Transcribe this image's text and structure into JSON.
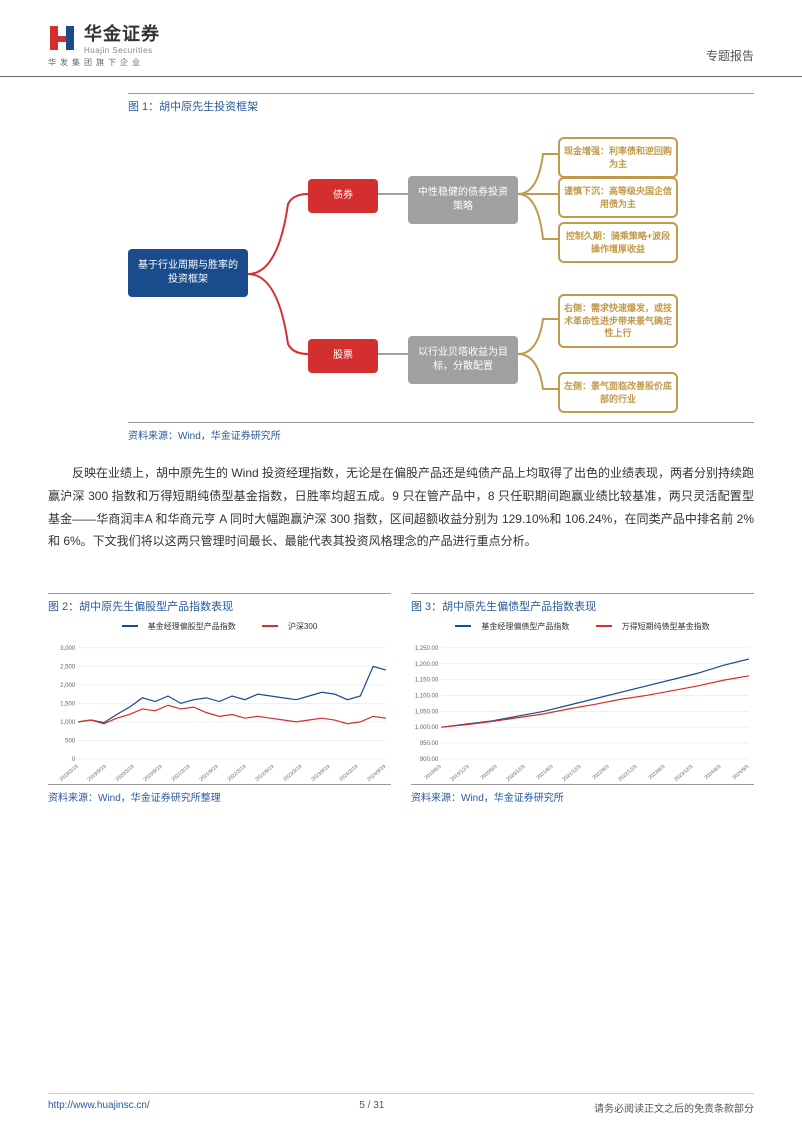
{
  "header": {
    "brand_cn": "华金证券",
    "brand_en": "Huajin Securities",
    "brand_sub": "华发集团旗下企业",
    "report_type": "专题报告"
  },
  "figure1": {
    "title": "图 1：胡中原先生投资框架",
    "root": "基于行业周期与胜率的投资框架",
    "branch_top": "债券",
    "branch_bot": "股票",
    "mid_top": "中性稳健的债券投资策略",
    "mid_bot": "以行业贝塔收益为目标，分散配置",
    "leaf1": "现金增强：利率债和逆回购为主",
    "leaf2": "谨慎下沉：高等级央国企信用债为主",
    "leaf3": "控制久期：骑乘策略+波段操作增厚收益",
    "leaf4": "右侧：需求快速爆发，或技术革命性进步带来景气确定性上行",
    "leaf5": "左侧：景气面临改善股价底部的行业",
    "source": "资料来源：Wind，华金证券研究所",
    "colors": {
      "root": "#1a4b8c",
      "red": "#d32f2f",
      "gray": "#a0a0a0",
      "gold_border": "#c19a4b"
    }
  },
  "body": {
    "para": "反映在业绩上，胡中原先生的 Wind 投资经理指数，无论是在偏股产品还是纯债产品上均取得了出色的业绩表现，两者分别持续跑赢沪深 300 指数和万得短期纯债型基金指数，日胜率均超五成。9 只在管产品中，8 只任职期间跑赢业绩比较基准，两只灵活配置型基金——华商润丰A 和华商元亨 A 同时大幅跑赢沪深 300 指数，区间超额收益分别为 129.10%和 106.24%，在同类产品中排名前 2%和 6%。下文我们将以这两只管理时间最长、最能代表其投资风格理念的产品进行重点分析。"
  },
  "chart2": {
    "title": "图 2：胡中原先生偏股型产品指数表现",
    "legend1": "基金经理偏股型产品指数",
    "legend2": "沪深300",
    "colors": {
      "series1": "#1a4b8c",
      "series2": "#d32f2f",
      "grid": "#e0e0e0"
    },
    "ylim": [
      0,
      3000
    ],
    "ystep": 500,
    "xlabels": [
      "2019/3/19",
      "2019/9/19",
      "2020/3/19",
      "2020/9/19",
      "2021/3/19",
      "2021/9/19",
      "2022/3/19",
      "2022/9/19",
      "2023/3/19",
      "2023/9/19",
      "2024/3/19",
      "2024/9/19"
    ],
    "series1": [
      1000,
      1050,
      980,
      1200,
      1400,
      1650,
      1550,
      1700,
      1500,
      1600,
      1650,
      1550,
      1700,
      1600,
      1750,
      1700,
      1650,
      1600,
      1700,
      1800,
      1750,
      1600,
      1700,
      2500,
      2400
    ],
    "series2": [
      1000,
      1050,
      950,
      1100,
      1200,
      1350,
      1300,
      1450,
      1350,
      1400,
      1250,
      1150,
      1200,
      1100,
      1150,
      1100,
      1050,
      1000,
      1050,
      1100,
      1050,
      950,
      1000,
      1150,
      1100
    ],
    "source": "资料来源：Wind，华金证券研究所整理"
  },
  "chart3": {
    "title": "图 3：胡中原先生偏债型产品指数表现",
    "legend1": "基金经理偏债型产品指数",
    "legend2": "万得短期纯债型基金指数",
    "colors": {
      "series1": "#1a4b8c",
      "series2": "#d32f2f",
      "grid": "#e0e0e0"
    },
    "ylim": [
      900,
      1250
    ],
    "ystep": 50,
    "xlabels": [
      "2019/6/3",
      "2019/12/3",
      "2020/6/3",
      "2020/12/3",
      "2021/6/3",
      "2021/12/3",
      "2022/6/3",
      "2022/12/3",
      "2023/6/3",
      "2023/12/3",
      "2024/6/3",
      "2024/9/3"
    ],
    "series1": [
      1000,
      1010,
      1020,
      1035,
      1050,
      1070,
      1090,
      1110,
      1130,
      1150,
      1170,
      1195,
      1215
    ],
    "series2": [
      1000,
      1008,
      1018,
      1030,
      1042,
      1058,
      1072,
      1088,
      1100,
      1115,
      1130,
      1148,
      1162
    ],
    "source": "资料来源：Wind，华金证券研究所"
  },
  "footer": {
    "url": "http://www.huajinsc.cn/",
    "page": "5 / 31",
    "disclaimer": "请务必阅读正文之后的免责条款部分"
  }
}
